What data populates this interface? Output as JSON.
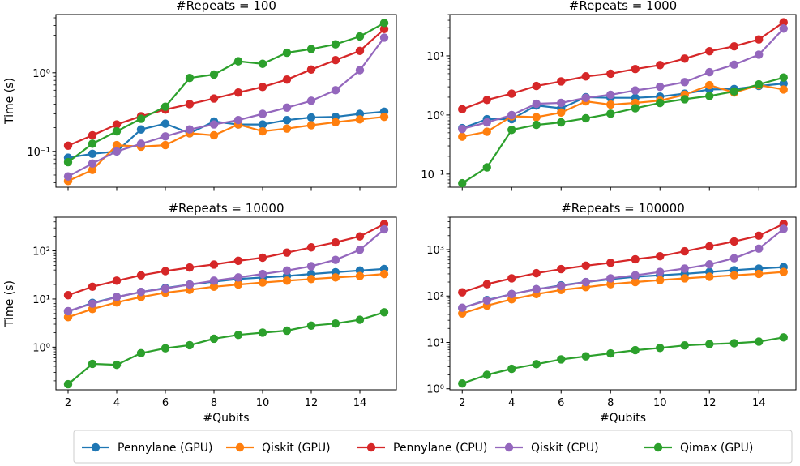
{
  "chart_data": [
    {
      "type": "line",
      "title": "#Repeats = 100",
      "xlabel": "",
      "ylabel": "Time (s)",
      "yscale": "log",
      "xlim": [
        1.5,
        15.5
      ],
      "ylim": [
        0.035,
        5.5
      ],
      "xticks": [],
      "yticks": [
        0.1,
        1
      ],
      "ytick_labels": [
        "10⁻¹",
        "10⁰"
      ],
      "x": [
        2,
        3,
        4,
        5,
        6,
        7,
        8,
        9,
        10,
        11,
        12,
        13,
        14,
        15
      ],
      "series": [
        {
          "name": "Pennylane (GPU)",
          "values": [
            0.083,
            0.093,
            0.1,
            0.19,
            0.225,
            0.17,
            0.24,
            0.22,
            0.22,
            0.25,
            0.27,
            0.275,
            0.3,
            0.32
          ]
        },
        {
          "name": "Qiskit (GPU)",
          "values": [
            0.042,
            0.058,
            0.12,
            0.115,
            0.12,
            0.17,
            0.16,
            0.22,
            0.18,
            0.195,
            0.215,
            0.235,
            0.255,
            0.275
          ]
        },
        {
          "name": "Pennylane (CPU)",
          "values": [
            0.118,
            0.16,
            0.22,
            0.28,
            0.34,
            0.4,
            0.47,
            0.56,
            0.66,
            0.82,
            1.1,
            1.45,
            1.9,
            3.6
          ]
        },
        {
          "name": "Qiskit (CPU)",
          "values": [
            0.048,
            0.07,
            0.1,
            0.125,
            0.155,
            0.19,
            0.22,
            0.25,
            0.3,
            0.36,
            0.44,
            0.6,
            1.08,
            2.8
          ]
        },
        {
          "name": "Qimax (GPU)",
          "values": [
            0.073,
            0.125,
            0.18,
            0.26,
            0.37,
            0.86,
            0.95,
            1.4,
            1.3,
            1.8,
            2.0,
            2.3,
            2.9,
            4.3
          ]
        }
      ]
    },
    {
      "type": "line",
      "title": "#Repeats = 1000",
      "xlabel": "",
      "ylabel": "",
      "yscale": "log",
      "xlim": [
        1.5,
        15.5
      ],
      "ylim": [
        0.06,
        50
      ],
      "xticks": [],
      "yticks": [
        0.1,
        1,
        10
      ],
      "ytick_labels": [
        "10⁻¹",
        "10⁰",
        "10¹"
      ],
      "x": [
        2,
        3,
        4,
        5,
        6,
        7,
        8,
        9,
        10,
        11,
        12,
        13,
        14,
        15
      ],
      "series": [
        {
          "name": "Pennylane (GPU)",
          "values": [
            0.6,
            0.85,
            0.85,
            1.45,
            1.3,
            2.0,
            1.95,
            1.95,
            2.05,
            2.3,
            2.7,
            2.75,
            3.1,
            3.4
          ]
        },
        {
          "name": "Qiskit (GPU)",
          "values": [
            0.43,
            0.52,
            0.95,
            0.92,
            1.1,
            1.7,
            1.5,
            1.6,
            1.75,
            2.2,
            3.2,
            2.4,
            3.2,
            2.7
          ]
        },
        {
          "name": "Pennylane (CPU)",
          "values": [
            1.25,
            1.8,
            2.3,
            3.1,
            3.7,
            4.5,
            5.0,
            6.0,
            7.0,
            9.0,
            12.0,
            14.5,
            19.0,
            37.0
          ]
        },
        {
          "name": "Qiskit (CPU)",
          "values": [
            0.58,
            0.75,
            1.0,
            1.55,
            1.6,
            1.95,
            2.2,
            2.6,
            3.0,
            3.6,
            5.3,
            7.1,
            10.5,
            29.0
          ]
        },
        {
          "name": "Qimax (GPU)",
          "values": [
            0.07,
            0.13,
            0.56,
            0.68,
            0.75,
            0.88,
            1.05,
            1.3,
            1.6,
            1.85,
            2.1,
            2.5,
            3.3,
            4.3
          ]
        }
      ]
    },
    {
      "type": "line",
      "title": "#Repeats = 10000",
      "xlabel": "#Qubits",
      "ylabel": "Time (s)",
      "yscale": "log",
      "xlim": [
        1.5,
        15.5
      ],
      "ylim": [
        0.13,
        500
      ],
      "xticks": [
        2,
        4,
        6,
        8,
        10,
        12,
        14
      ],
      "yticks": [
        1,
        10,
        100
      ],
      "ytick_labels": [
        "10⁰",
        "10¹",
        "10²"
      ],
      "x": [
        2,
        3,
        4,
        5,
        6,
        7,
        8,
        9,
        10,
        11,
        12,
        13,
        14,
        15
      ],
      "series": [
        {
          "name": "Pennylane (GPU)",
          "values": [
            5.5,
            8.3,
            11.0,
            14.0,
            17.0,
            20.0,
            23.0,
            26.0,
            28.0,
            30.0,
            33.0,
            36.0,
            39.0,
            42.0
          ]
        },
        {
          "name": "Qiskit (GPU)",
          "values": [
            4.2,
            6.2,
            8.5,
            11.0,
            13.5,
            15.5,
            18.0,
            20.0,
            22.0,
            24.0,
            26.0,
            28.0,
            30.0,
            33.0
          ]
        },
        {
          "name": "Pennylane (CPU)",
          "values": [
            12.0,
            18.0,
            24.0,
            31.0,
            38.0,
            45.0,
            52.0,
            62.0,
            72.0,
            92.0,
            118.0,
            150.0,
            200.0,
            360.0
          ]
        },
        {
          "name": "Qiskit (CPU)",
          "values": [
            5.6,
            8.0,
            11.0,
            14.0,
            16.5,
            20.0,
            24.0,
            28.0,
            33.0,
            39.0,
            48.0,
            65.0,
            105.0,
            280.0
          ]
        },
        {
          "name": "Qimax (GPU)",
          "values": [
            0.17,
            0.45,
            0.43,
            0.75,
            0.95,
            1.1,
            1.5,
            1.8,
            2.0,
            2.2,
            2.8,
            3.1,
            3.7,
            5.3
          ]
        }
      ]
    },
    {
      "type": "line",
      "title": "#Repeats = 100000",
      "xlabel": "#Qubits",
      "ylabel": "",
      "yscale": "log",
      "xlim": [
        1.5,
        15.5
      ],
      "ylim": [
        0.95,
        5000
      ],
      "xticks": [
        2,
        4,
        6,
        8,
        10,
        12,
        14
      ],
      "yticks": [
        1,
        10,
        100,
        1000
      ],
      "ytick_labels": [
        "10⁰",
        "10¹",
        "10²",
        "10³"
      ],
      "x": [
        2,
        3,
        4,
        5,
        6,
        7,
        8,
        9,
        10,
        11,
        12,
        13,
        14,
        15
      ],
      "series": [
        {
          "name": "Pennylane (GPU)",
          "values": [
            55.0,
            82.0,
            110.0,
            140.0,
            170.0,
            200.0,
            230.0,
            260.0,
            280.0,
            300.0,
            330.0,
            360.0,
            390.0,
            420.0
          ]
        },
        {
          "name": "Qiskit (GPU)",
          "values": [
            42.0,
            62.0,
            85.0,
            110.0,
            135.0,
            155.0,
            180.0,
            200.0,
            220.0,
            240.0,
            260.0,
            280.0,
            300.0,
            330.0
          ]
        },
        {
          "name": "Pennylane (CPU)",
          "values": [
            120.0,
            180.0,
            240.0,
            310.0,
            380.0,
            450.0,
            520.0,
            620.0,
            720.0,
            920.0,
            1180.0,
            1500.0,
            2000.0,
            3600.0
          ]
        },
        {
          "name": "Qiskit (CPU)",
          "values": [
            56.0,
            80.0,
            110.0,
            140.0,
            165.0,
            200.0,
            240.0,
            280.0,
            330.0,
            390.0,
            480.0,
            650.0,
            1050.0,
            2800.0
          ]
        },
        {
          "name": "Qimax (GPU)",
          "values": [
            1.3,
            2.0,
            2.7,
            3.4,
            4.3,
            5.0,
            5.8,
            6.8,
            7.6,
            8.6,
            9.2,
            9.6,
            10.4,
            12.8
          ]
        }
      ]
    }
  ],
  "legend": {
    "position": "bottom",
    "entries": [
      {
        "label": "Pennylane (GPU)",
        "color": "#1f77b4"
      },
      {
        "label": "Qiskit (GPU)",
        "color": "#ff7f0e"
      },
      {
        "label": "Pennylane (CPU)",
        "color": "#d62728"
      },
      {
        "label": "Qiskit (CPU)",
        "color": "#9467bd"
      },
      {
        "label": "Qimax (GPU)",
        "color": "#2ca02c"
      }
    ]
  }
}
